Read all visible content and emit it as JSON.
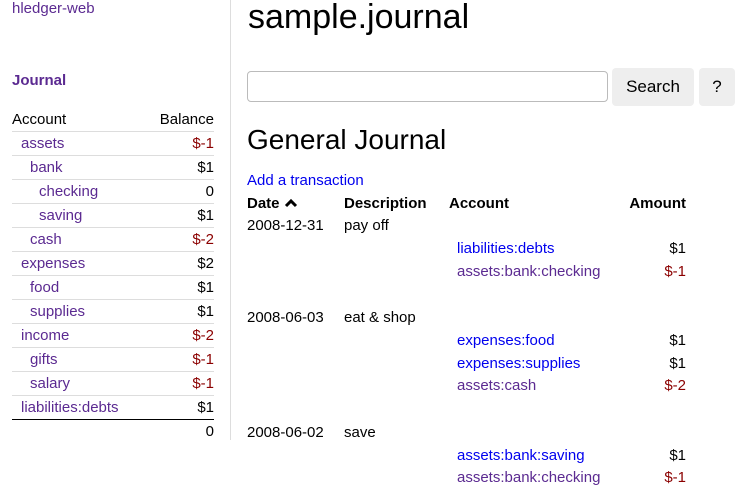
{
  "sidebar": {
    "brand": "hledger-web",
    "journal_link": "Journal",
    "headers": {
      "account": "Account",
      "balance": "Balance"
    },
    "accounts": [
      {
        "name": "assets",
        "indent": 0,
        "balance": "$-1",
        "negative": true
      },
      {
        "name": "bank",
        "indent": 1,
        "balance": "$1",
        "negative": false
      },
      {
        "name": "checking",
        "indent": 2,
        "balance": "0",
        "negative": false
      },
      {
        "name": "saving",
        "indent": 2,
        "balance": "$1",
        "negative": false
      },
      {
        "name": "cash",
        "indent": 1,
        "balance": "$-2",
        "negative": true
      },
      {
        "name": "expenses",
        "indent": 0,
        "balance": "$2",
        "negative": false
      },
      {
        "name": "food",
        "indent": 1,
        "balance": "$1",
        "negative": false
      },
      {
        "name": "supplies",
        "indent": 1,
        "balance": "$1",
        "negative": false
      },
      {
        "name": "income",
        "indent": 0,
        "balance": "$-2",
        "negative": true
      },
      {
        "name": "gifts",
        "indent": 1,
        "balance": "$-1",
        "negative": true
      },
      {
        "name": "salary",
        "indent": 1,
        "balance": "$-1",
        "negative": true
      },
      {
        "name": "liabilities:debts",
        "indent": 0,
        "balance": "$1",
        "negative": false
      }
    ],
    "total": "0"
  },
  "main": {
    "title": "sample.journal",
    "search_placeholder": "",
    "search_button": "Search",
    "help_button": "?",
    "heading": "General Journal",
    "add_link": "Add a transaction",
    "columns": {
      "date": "Date",
      "sort_icon": "chevron-up-icon",
      "description": "Description",
      "account": "Account",
      "amount": "Amount"
    },
    "transactions": [
      {
        "date": "2008-12-31",
        "description": "pay off",
        "postings": [
          {
            "account": "liabilities:debts",
            "amount": "$1",
            "visited": false
          },
          {
            "account": "assets:bank:checking",
            "amount": "$-1",
            "visited": true
          }
        ]
      },
      {
        "date": "2008-06-03",
        "description": "eat & shop",
        "postings": [
          {
            "account": "expenses:food",
            "amount": "$1",
            "visited": false
          },
          {
            "account": "expenses:supplies",
            "amount": "$1",
            "visited": false
          },
          {
            "account": "assets:cash",
            "amount": "$-2",
            "visited": true
          }
        ]
      },
      {
        "date": "2008-06-02",
        "description": "save",
        "postings": [
          {
            "account": "assets:bank:saving",
            "amount": "$1",
            "visited": false
          },
          {
            "account": "assets:bank:checking",
            "amount": "$-1",
            "visited": true
          }
        ]
      }
    ]
  },
  "colors": {
    "visited_link": "#5b2a91",
    "link": "#0000ee",
    "negative": "#8b0000"
  }
}
